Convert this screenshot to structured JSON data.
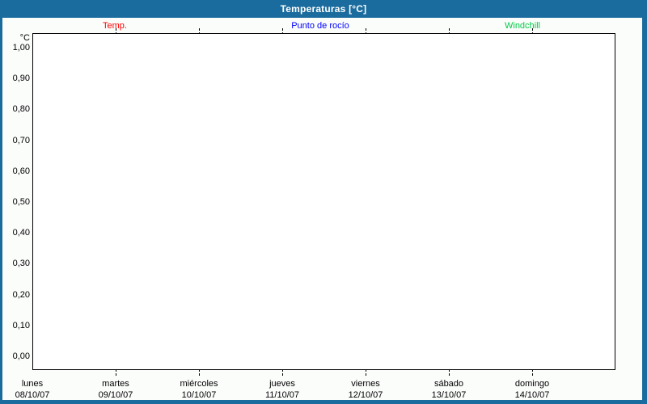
{
  "header": {
    "title": "Temperaturas [°C]"
  },
  "legend": {
    "items": [
      {
        "label": "Temp.",
        "color": "#ff0000"
      },
      {
        "label": "Punto de rocío",
        "color": "#0000ff"
      },
      {
        "label": "Windchill",
        "color": "#00cc44"
      }
    ]
  },
  "colors": {
    "frame": "#1b6c9e",
    "header_bg": "#1b6c9e",
    "page_bg": "#fbfdfb",
    "plot_bg": "#fefffe",
    "grid": "#000000",
    "text": "#000000"
  },
  "chart_data": {
    "type": "line",
    "title": "Temperaturas [°C]",
    "unit_label": "°C",
    "ylabel": "°C",
    "ylim": [
      0.0,
      1.0
    ],
    "y_tick_step": 0.1,
    "y_tick_labels": [
      "1,00",
      "0,90",
      "0,80",
      "0,70",
      "0,60",
      "0,50",
      "0,40",
      "0,30",
      "0,20",
      "0,10",
      "0,00"
    ],
    "x_categories": [
      {
        "weekday": "lunes",
        "date": "08/10/07"
      },
      {
        "weekday": "martes",
        "date": "09/10/07"
      },
      {
        "weekday": "miércoles",
        "date": "10/10/07"
      },
      {
        "weekday": "jueves",
        "date": "11/10/07"
      },
      {
        "weekday": "viernes",
        "date": "12/10/07"
      },
      {
        "weekday": "sábado",
        "date": "13/10/07"
      },
      {
        "weekday": "domingo",
        "date": "14/10/07"
      }
    ],
    "series": [
      {
        "name": "Temp.",
        "color": "#ff0000",
        "values": []
      },
      {
        "name": "Punto de rocío",
        "color": "#0000ff",
        "values": []
      },
      {
        "name": "Windchill",
        "color": "#00cc44",
        "values": []
      }
    ],
    "grid": "dashed",
    "legend_position": "top",
    "plot_empty": true
  }
}
